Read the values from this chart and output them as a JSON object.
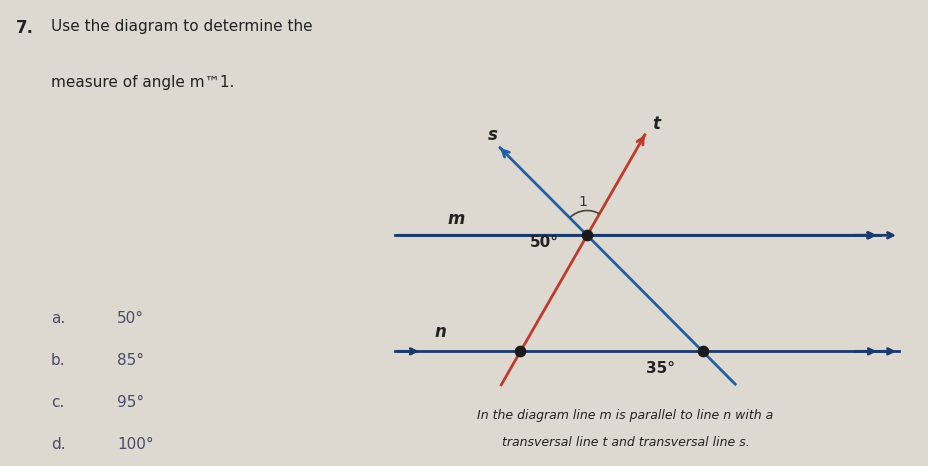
{
  "bg_color": "#ddd9d0",
  "line_m_color": "#1a3a6b",
  "line_n_color": "#1a3a6b",
  "line_t_color": "#c0392b",
  "line_s_color": "#2060a0",
  "question_number": "7.",
  "question_text1": "Use the diagram to determine the",
  "question_text2": "measure of angle m™1.",
  "caption_line1": "In the diagram line ​m​ is parallel to line ​n​ with a",
  "caption_line2": "transversal line ​t​ and transversal line s.",
  "label_m": "m",
  "label_n": "n",
  "label_s": "s",
  "label_t": "t",
  "angle_50_label": "50°",
  "angle_1_label": "1",
  "angle_35_label": "35°",
  "choices_letters": [
    "a.",
    "b.",
    "c.",
    "d."
  ],
  "choices_values": [
    "50°",
    "85°",
    "95°",
    "100°"
  ]
}
